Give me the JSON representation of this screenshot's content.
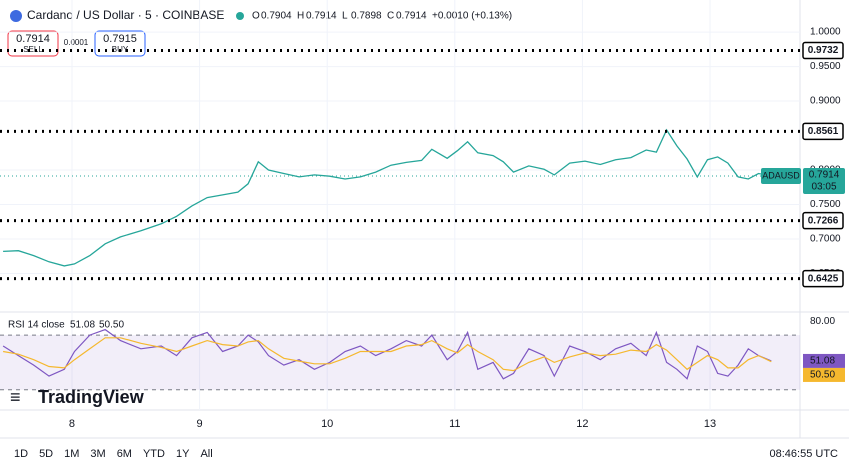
{
  "header": {
    "symbol": "Cardano / US Dollar · 5 · COINBASE",
    "ohlc": [
      {
        "label": "O",
        "value": "0.7904"
      },
      {
        "label": "H",
        "value": "0.7914"
      },
      {
        "label": "L",
        "value": "0.7898"
      },
      {
        "label": "C",
        "value": "0.7914"
      }
    ],
    "change": "+0.0010 (+0.13%)"
  },
  "trade": {
    "sell_price": "0.7914",
    "sell": "SELL",
    "spread": "0.0001",
    "buy_price": "0.7915",
    "buy": "BUY"
  },
  "chart_data": [
    {
      "type": "line",
      "ticker": "ADAUSD",
      "last_price": "0.7914",
      "countdown": "03:05",
      "color": "#26a69a",
      "grid": true,
      "x": [
        7.46,
        7.58,
        7.7,
        7.82,
        7.94,
        8.02,
        8.14,
        8.26,
        8.38,
        8.54,
        8.7,
        8.82,
        8.94,
        9.06,
        9.18,
        9.3,
        9.38,
        9.46,
        9.54,
        9.66,
        9.78,
        9.9,
        10.02,
        10.14,
        10.26,
        10.38,
        10.5,
        10.62,
        10.74,
        10.82,
        10.94,
        11.02,
        11.1,
        11.18,
        11.3,
        11.38,
        11.46,
        11.58,
        11.7,
        11.78,
        11.9,
        12.02,
        12.14,
        12.26,
        12.38,
        12.5,
        12.58,
        12.66,
        12.74,
        12.82,
        12.9,
        12.98,
        13.06,
        13.14,
        13.22,
        13.3,
        13.38,
        13.48
      ],
      "values": [
        0.682,
        0.683,
        0.676,
        0.667,
        0.661,
        0.664,
        0.676,
        0.693,
        0.703,
        0.712,
        0.722,
        0.733,
        0.748,
        0.76,
        0.764,
        0.768,
        0.78,
        0.812,
        0.8,
        0.795,
        0.79,
        0.793,
        0.791,
        0.787,
        0.79,
        0.797,
        0.807,
        0.811,
        0.814,
        0.83,
        0.817,
        0.828,
        0.841,
        0.825,
        0.821,
        0.812,
        0.797,
        0.806,
        0.801,
        0.793,
        0.81,
        0.813,
        0.808,
        0.815,
        0.818,
        0.829,
        0.826,
        0.858,
        0.835,
        0.816,
        0.79,
        0.815,
        0.819,
        0.81,
        0.79,
        0.787,
        0.795,
        0.7914
      ],
      "xlim": [
        7.436,
        13.705
      ],
      "xticks": [
        8,
        9,
        10,
        11,
        12,
        13
      ],
      "ylim": [
        0.6,
        1.032
      ],
      "yticks": [
        {
          "value": 0.65,
          "label": "0.6500"
        },
        {
          "value": 0.7,
          "label": "0.7000"
        },
        {
          "value": 0.75,
          "label": "0.7500"
        },
        {
          "value": 0.8,
          "label": "0.8000"
        },
        {
          "value": 0.9,
          "label": "0.9000"
        },
        {
          "value": 0.95,
          "label": "0.9500"
        },
        {
          "value": 1.0,
          "label": "1.0000"
        }
      ],
      "levels": [
        {
          "value": 0.9732,
          "label": "0.9732"
        },
        {
          "value": 0.8561,
          "label": "0.8561"
        },
        {
          "value": 0.7266,
          "label": "0.7266"
        },
        {
          "value": 0.6425,
          "label": "0.6425"
        }
      ]
    },
    {
      "type": "line",
      "title": "RSI 14 close",
      "rsi_label": "51.08",
      "ma_label": "50.50",
      "band": [
        30,
        70
      ],
      "ylim": [
        22.5,
        82.5
      ],
      "yticks": [
        {
          "value": 80,
          "label": "80.00"
        }
      ],
      "series": [
        {
          "color": "#7e57c2",
          "values": [
            62,
            55,
            48,
            40,
            45,
            58,
            70,
            74,
            66,
            60,
            62,
            55,
            68,
            72,
            58,
            62,
            70,
            65,
            55,
            48,
            52,
            45,
            50,
            58,
            62,
            55,
            60,
            66,
            62,
            70,
            52,
            58,
            72,
            45,
            50,
            38,
            42,
            60,
            55,
            40,
            62,
            58,
            52,
            60,
            64,
            55,
            72,
            50,
            45,
            38,
            62,
            58,
            42,
            40,
            48,
            60,
            55,
            51.08
          ]
        },
        {
          "color": "#f5b82e",
          "values": [
            58,
            56,
            52,
            47,
            46,
            52,
            60,
            68,
            68,
            64,
            61,
            58,
            62,
            66,
            63,
            62,
            65,
            66,
            60,
            53,
            51,
            49,
            49,
            53,
            58,
            58,
            58,
            62,
            63,
            66,
            60,
            57,
            63,
            58,
            52,
            45,
            44,
            50,
            54,
            50,
            54,
            57,
            55,
            56,
            59,
            58,
            63,
            59,
            52,
            45,
            50,
            55,
            52,
            46,
            46,
            52,
            55,
            50.5
          ]
        }
      ]
    }
  ],
  "footer": {
    "logo": "TradingView",
    "periods": [
      "1D",
      "5D",
      "1M",
      "3M",
      "6M",
      "YTD",
      "1Y",
      "All"
    ],
    "clock": "08:46:55 UTC"
  }
}
